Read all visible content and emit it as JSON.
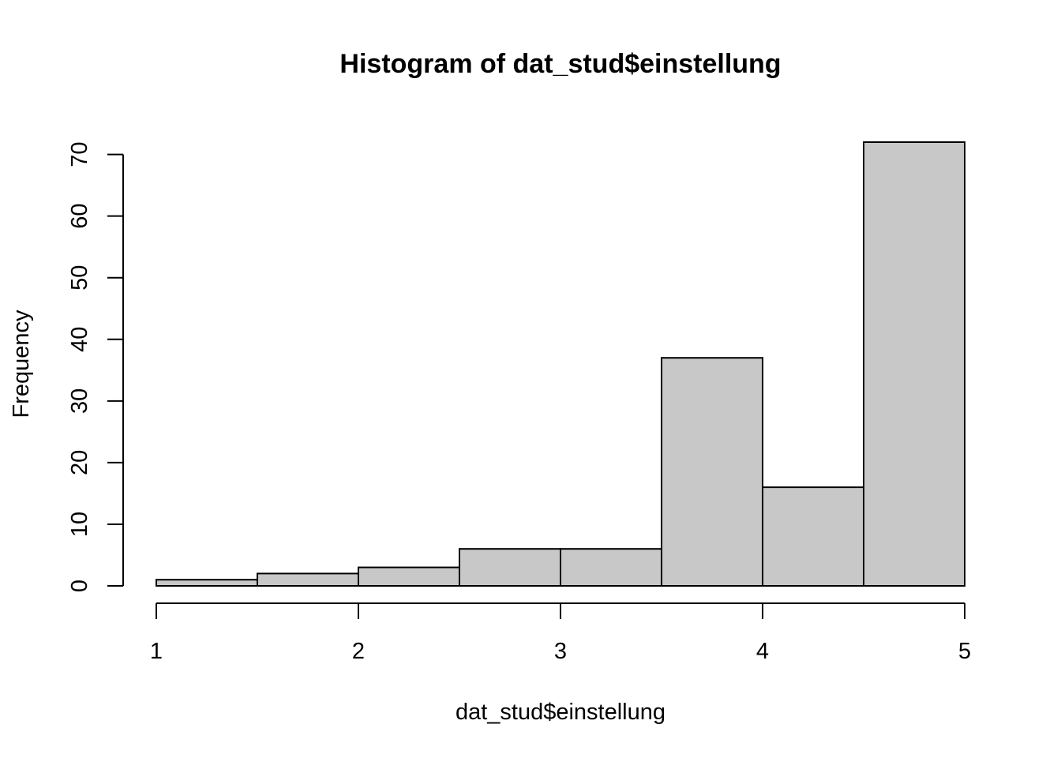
{
  "chart_data": {
    "type": "bar",
    "title": "Histogram of dat_stud$einstellung",
    "xlabel": "dat_stud$einstellung",
    "ylabel": "Frequency",
    "bins": [
      {
        "start": 1.0,
        "end": 1.5,
        "count": 1
      },
      {
        "start": 1.5,
        "end": 2.0,
        "count": 2
      },
      {
        "start": 2.0,
        "end": 2.5,
        "count": 3
      },
      {
        "start": 2.5,
        "end": 3.0,
        "count": 6
      },
      {
        "start": 3.0,
        "end": 3.5,
        "count": 6
      },
      {
        "start": 3.5,
        "end": 4.0,
        "count": 37
      },
      {
        "start": 4.0,
        "end": 4.5,
        "count": 16
      },
      {
        "start": 4.5,
        "end": 5.0,
        "count": 72
      }
    ],
    "xlim": [
      1,
      5
    ],
    "ylim": [
      0,
      72
    ],
    "x_ticks": [
      "1",
      "2",
      "3",
      "4",
      "5"
    ],
    "y_ticks": [
      "0",
      "10",
      "20",
      "30",
      "40",
      "50",
      "60",
      "70"
    ],
    "bar_color": "#c8c8c8",
    "grid": false
  }
}
